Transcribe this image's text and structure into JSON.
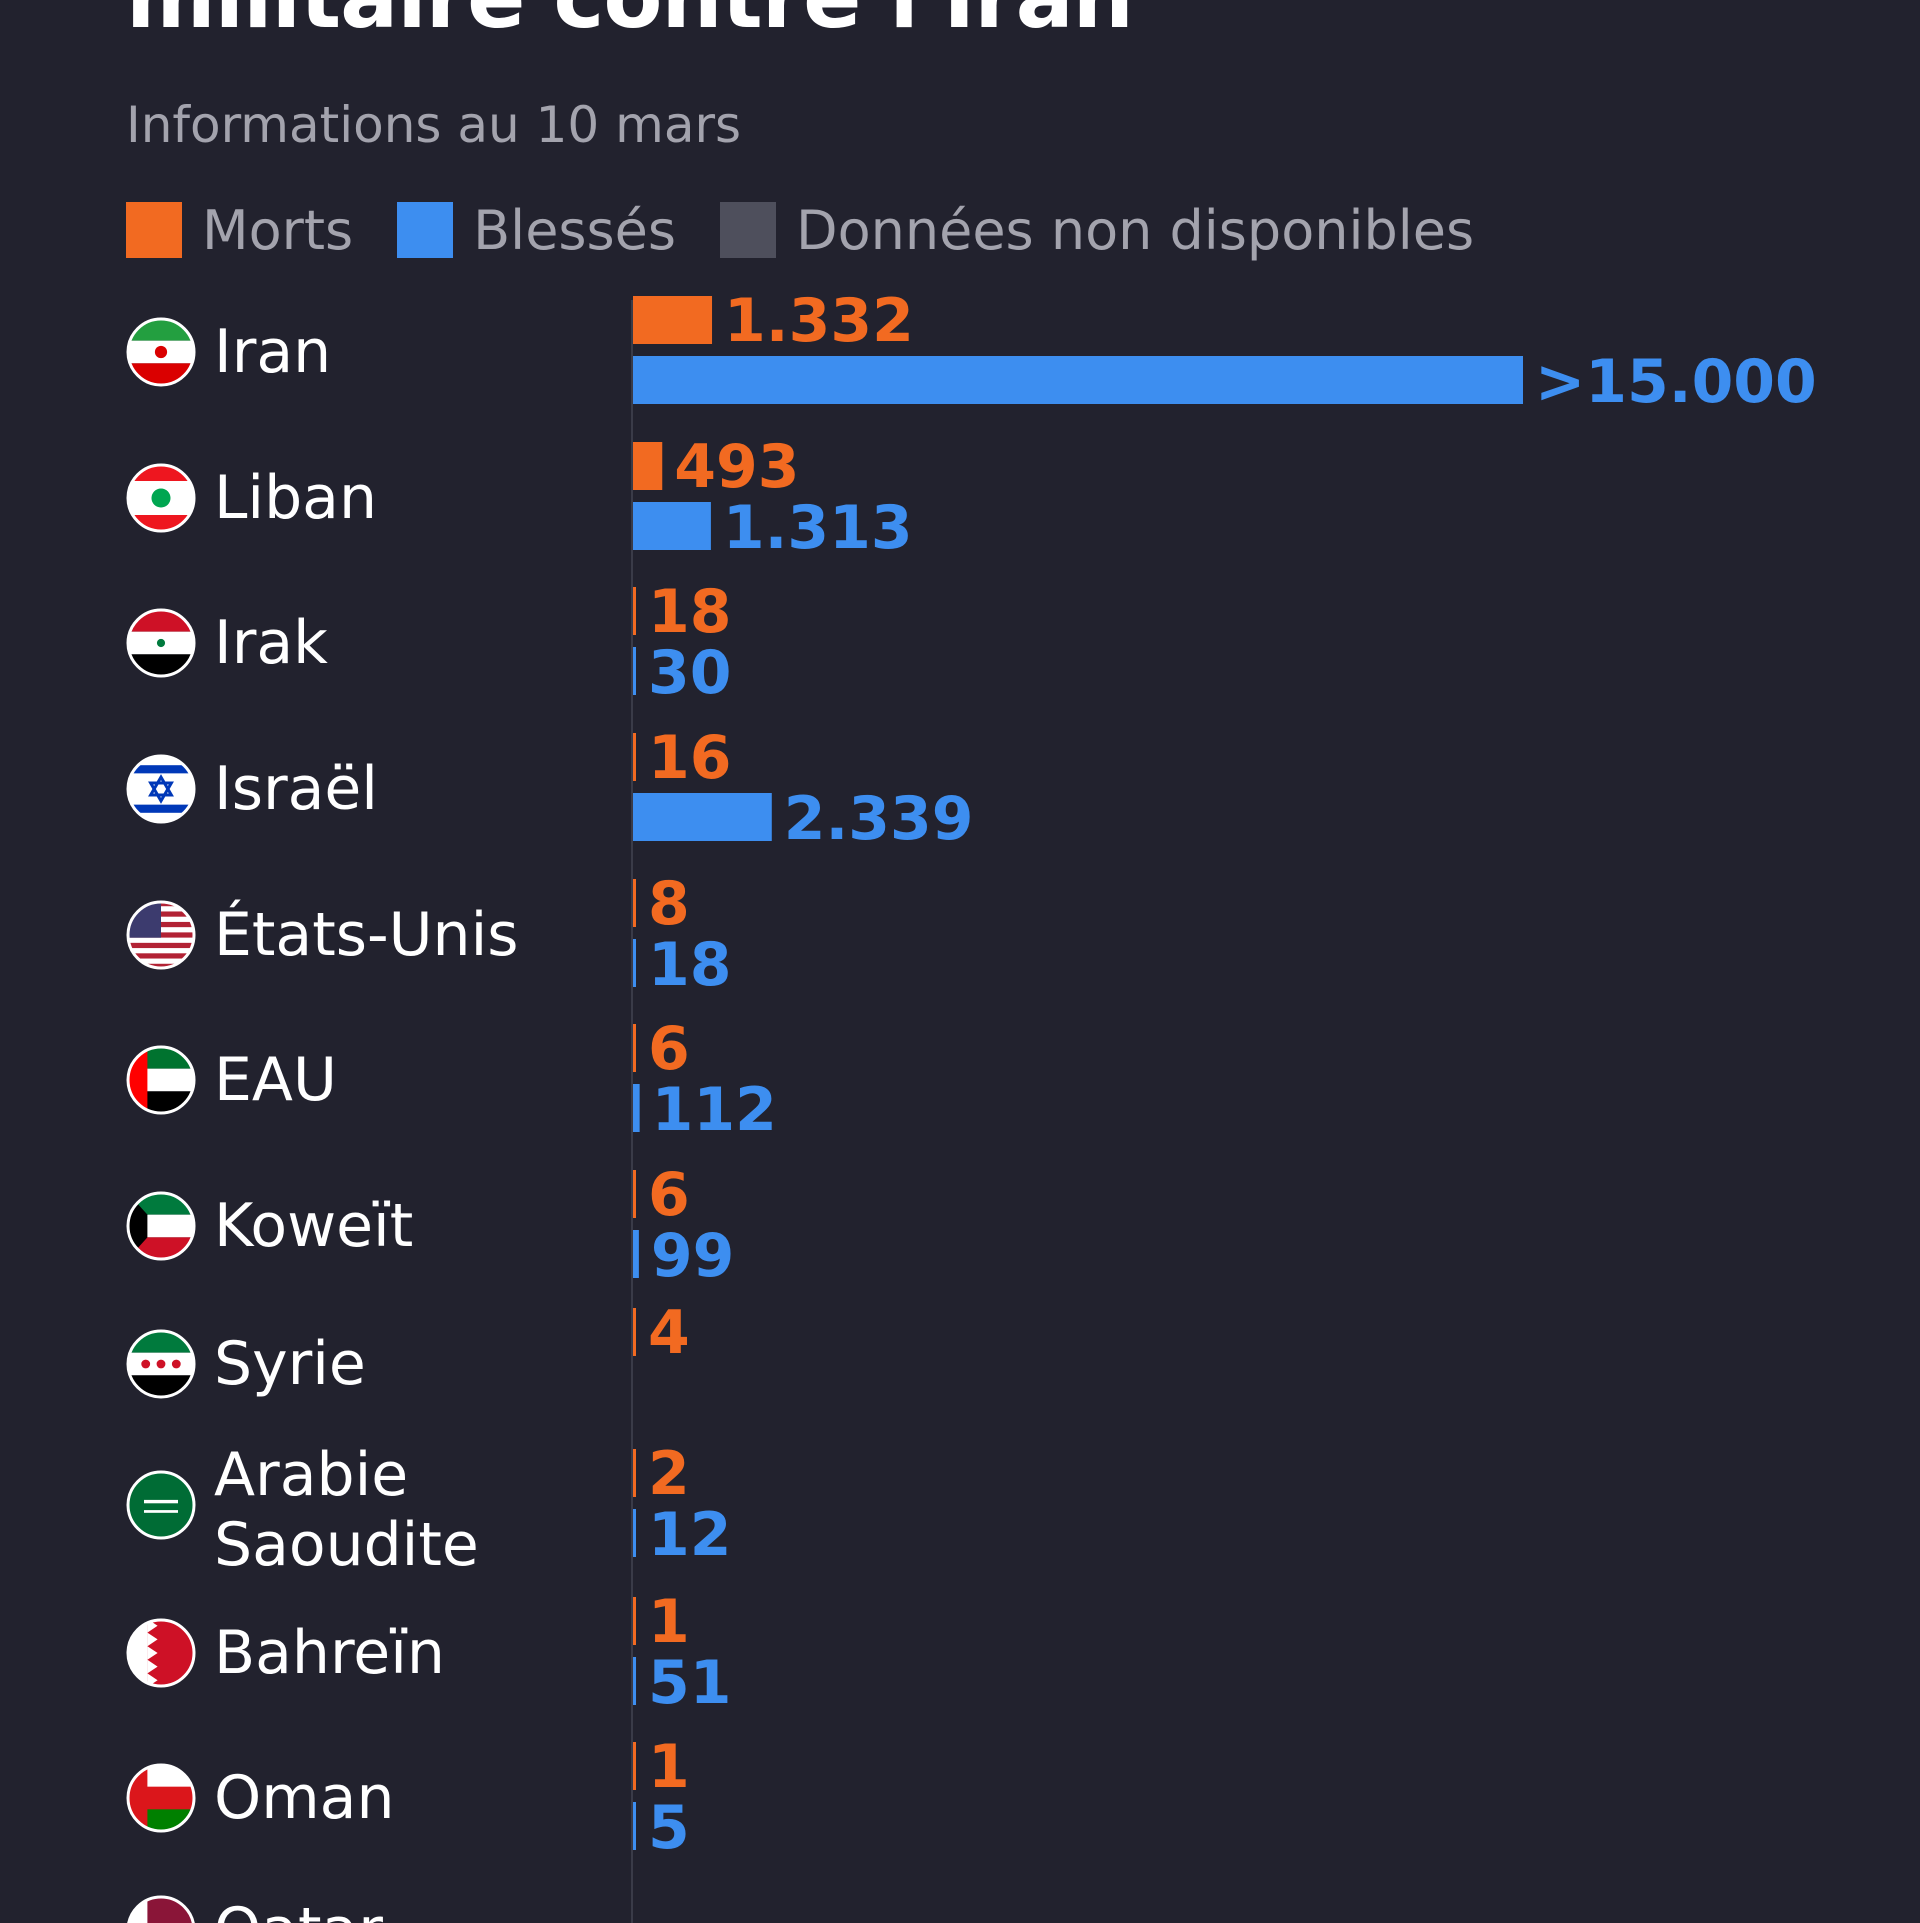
{
  "title": "militaire contre l'Iran",
  "subtitle": "Informations au 10 mars",
  "legend": [
    {
      "label": "Morts",
      "color": "#f26a21"
    },
    {
      "label": "Blessés",
      "color": "#3d8ef0"
    },
    {
      "label": "Données non disponibles",
      "color": "#4e4f5c"
    }
  ],
  "chart_data": {
    "type": "bar",
    "orientation": "horizontal",
    "categories": [
      "Iran",
      "Liban",
      "Irak",
      "Israël",
      "États-Unis",
      "EAU",
      "Koweït",
      "Syrie",
      "Arabie Saoudite",
      "Bahreïn",
      "Oman",
      "Qatar"
    ],
    "series": [
      {
        "name": "Morts",
        "color": "#f26a21",
        "values": [
          1332,
          493,
          18,
          16,
          8,
          6,
          6,
          4,
          2,
          1,
          1,
          null
        ],
        "labels": [
          "1.332",
          "493",
          "18",
          "16",
          "8",
          "6",
          "6",
          "4",
          "2",
          "1",
          "1",
          ""
        ]
      },
      {
        "name": "Blessés",
        "color": "#3d8ef0",
        "values": [
          15000,
          1313,
          30,
          2339,
          18,
          112,
          99,
          null,
          12,
          51,
          5,
          null
        ],
        "labels": [
          ">15.000",
          "1.313",
          "30",
          "2.339",
          "18",
          "112",
          "99",
          "",
          "12",
          "51",
          "5",
          ""
        ]
      }
    ],
    "flags": [
      "iran-flag-icon",
      "lebanon-flag-icon",
      "iraq-flag-icon",
      "israel-flag-icon",
      "usa-flag-icon",
      "uae-flag-icon",
      "kuwait-flag-icon",
      "syria-flag-icon",
      "saudi-arabia-flag-icon",
      "bahrain-flag-icon",
      "oman-flag-icon",
      "qatar-flag-icon"
    ],
    "xlim": [
      0,
      15000
    ],
    "grid": false,
    "legend_position": "top-left"
  }
}
